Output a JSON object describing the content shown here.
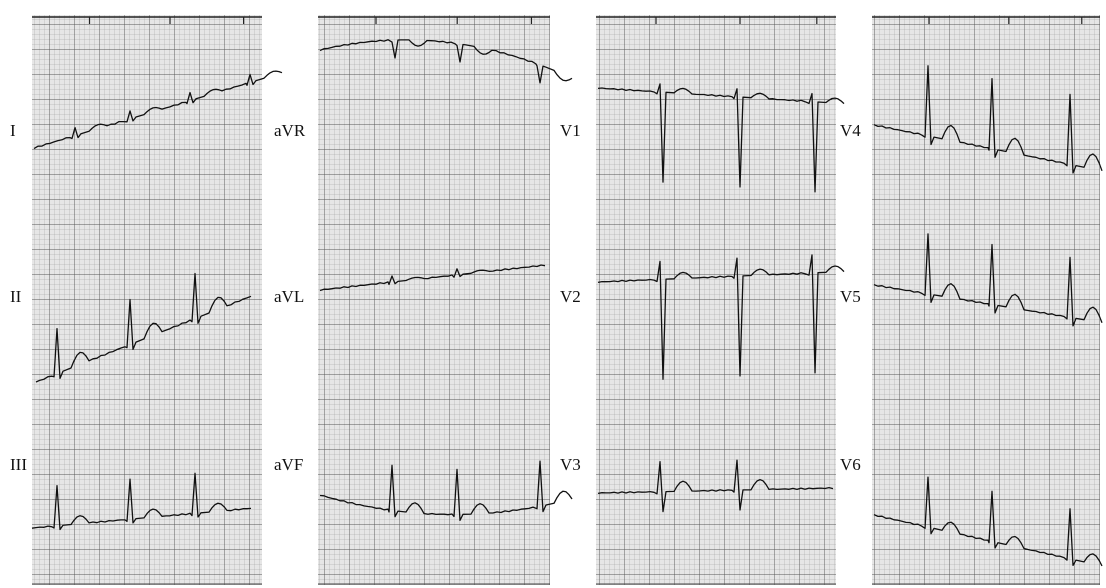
{
  "leads": [
    "I",
    "II",
    "III",
    "aVR",
    "aVL",
    "aVF",
    "V1",
    "V2",
    "V3",
    "V4",
    "V5",
    "V6"
  ]
}
